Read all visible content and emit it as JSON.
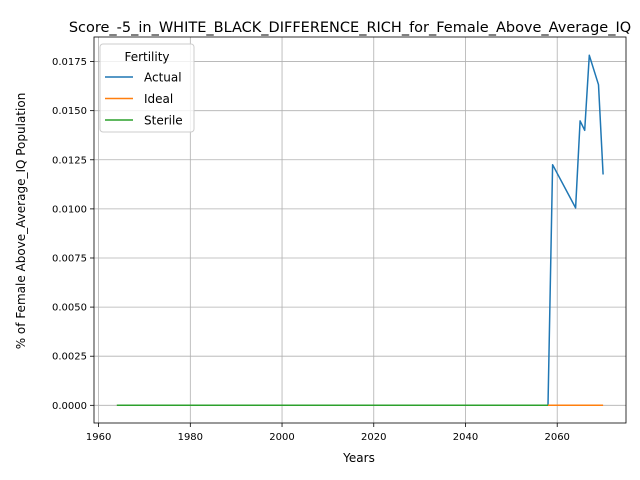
{
  "chart_data": {
    "type": "line",
    "title": "Score_-5_in_WHITE_BLACK_DIFFERENCE_RICH_for_Female_Above_Average_IQ",
    "xlabel": "Years",
    "ylabel": "% of Female Above_Average_IQ Population",
    "xlim": [
      1959,
      2075
    ],
    "ylim": [
      -0.0009,
      0.01875
    ],
    "x_ticks": [
      1960,
      1980,
      2000,
      2020,
      2040,
      2060
    ],
    "x_tick_labels": [
      "1960",
      "1980",
      "2000",
      "2020",
      "2040",
      "2060"
    ],
    "y_ticks": [
      0,
      0.0025,
      0.005,
      0.0075,
      0.01,
      0.0125,
      0.015,
      0.0175
    ],
    "y_tick_labels": [
      "0.0000",
      "0.0025",
      "0.0050",
      "0.0075",
      "0.0100",
      "0.0125",
      "0.0150",
      "0.0175"
    ],
    "grid": true,
    "legend": {
      "title": "Fertility",
      "placement": "top-left"
    },
    "series": [
      {
        "name": "Actual",
        "color": "#1f77b4",
        "x": [
          1964,
          2058,
          2059,
          2064,
          2065,
          2066,
          2067,
          2069,
          2070
        ],
        "y": [
          0,
          0,
          0.01225,
          0.01005,
          0.01448,
          0.014,
          0.01782,
          0.01632,
          0.01175
        ]
      },
      {
        "name": "Ideal",
        "color": "#ff7f0e",
        "x": [
          1964,
          2070
        ],
        "y": [
          0,
          0
        ]
      },
      {
        "name": "Sterile",
        "color": "#2ca02c",
        "x": [
          1964,
          2058
        ],
        "y": [
          0,
          0
        ]
      }
    ]
  }
}
